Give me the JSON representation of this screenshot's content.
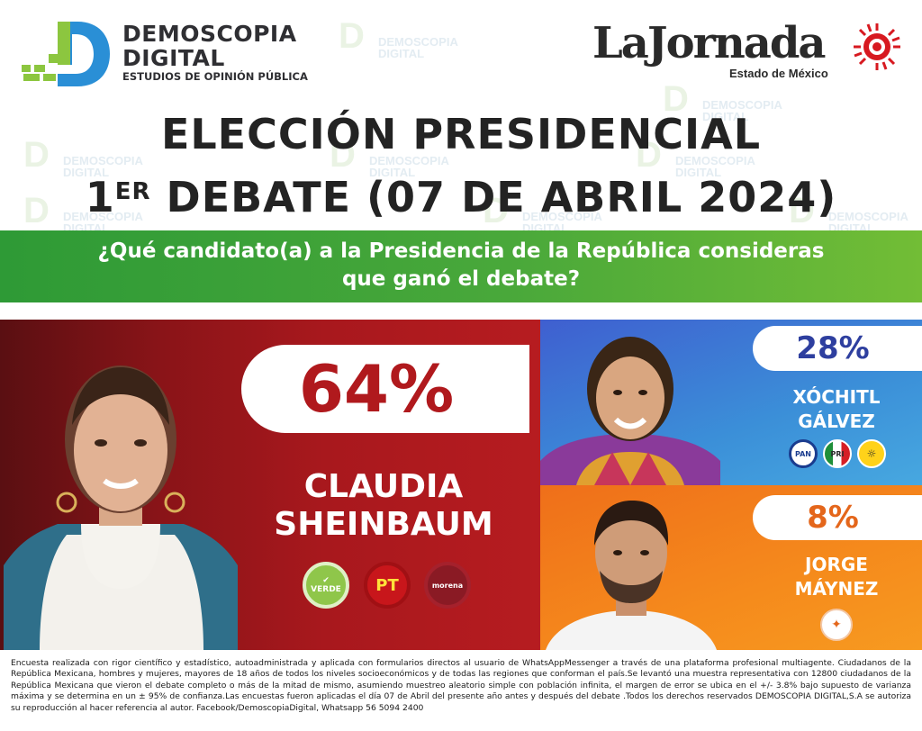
{
  "brand_left": {
    "name_line1": "DEMOSCOPIA",
    "name_line2": "DIGITAL",
    "tagline": "ESTUDIOS DE OPINIÓN PÚBLICA",
    "colors": {
      "blue": "#2a8fd6",
      "green": "#8cc63f",
      "text": "#2f2f33"
    }
  },
  "brand_right": {
    "name": "LaJornada",
    "edition": "Estado de México",
    "colors": {
      "text": "#2a2a2a",
      "sun": "#d71920"
    }
  },
  "title": {
    "line1": "ELECCIÓN PRESIDENCIAL",
    "line2_prefix": "1",
    "line2_sup": "ER",
    "line2_rest": " DEBATE (07 DE ABRIL 2024)"
  },
  "question": {
    "line1": "¿Qué candidato(a) a la Presidencia de la República consideras",
    "line2": "que ganó el debate?",
    "color": "#49a83a"
  },
  "candidates": [
    {
      "percent": "64%",
      "name_line1": "CLAUDIA",
      "name_line2": "SHEINBAUM",
      "color": "#b0191d",
      "parties": [
        "VERDE",
        "PT",
        "morena"
      ],
      "portrait": "woman-portrait-icon"
    },
    {
      "percent": "28%",
      "name_line1": "XÓCHITL",
      "name_line2": "GÁLVEZ",
      "color": "#2e3f9f",
      "parties": [
        "PAN",
        "PRI",
        "PRD"
      ],
      "portrait": "woman-portrait-icon"
    },
    {
      "percent": "8%",
      "name_line1": "JORGE",
      "name_line2": "MÁYNEZ",
      "color": "#e4661b",
      "parties": [
        "MC"
      ],
      "portrait": "man-portrait-icon"
    }
  ],
  "chart_data": {
    "type": "bar",
    "categories": [
      "CLAUDIA SHEINBAUM",
      "XÓCHITL GÁLVEZ",
      "JORGE MÁYNEZ"
    ],
    "values": [
      64,
      28,
      8
    ]
  },
  "footer": "Encuesta realizada con rigor científico y estadístico, autoadministrada y aplicada con formularios directos al usuario de WhatsAppMessenger a través de una plataforma profesional multiagente. Ciudadanos de la República Mexicana, hombres y mujeres, mayores de 18 años de todos los niveles socioeconómicos y de todas las regiones que conforman el país.Se levantó una muestra representativa con 12800 ciudadanos de la República Mexicana que vieron el debate completo o más de la mitad de mismo, asumiendo muestreo aleatorio simple con población infinita, el margen de error se ubica en el +/- 3.8% bajo supuesto de varianza máxima y se determina en un ± 95% de confianza.Las encuestas fueron aplicadas el día 07 de Abril del presente año antes y después del debate .Todos los derechos reservados DEMOSCOPIA DIGITAL,S.A se autoriza su reproducción al hacer referencia al autor. Facebook/DemoscopiaDigital, Whatsapp 56 5094 2400"
}
